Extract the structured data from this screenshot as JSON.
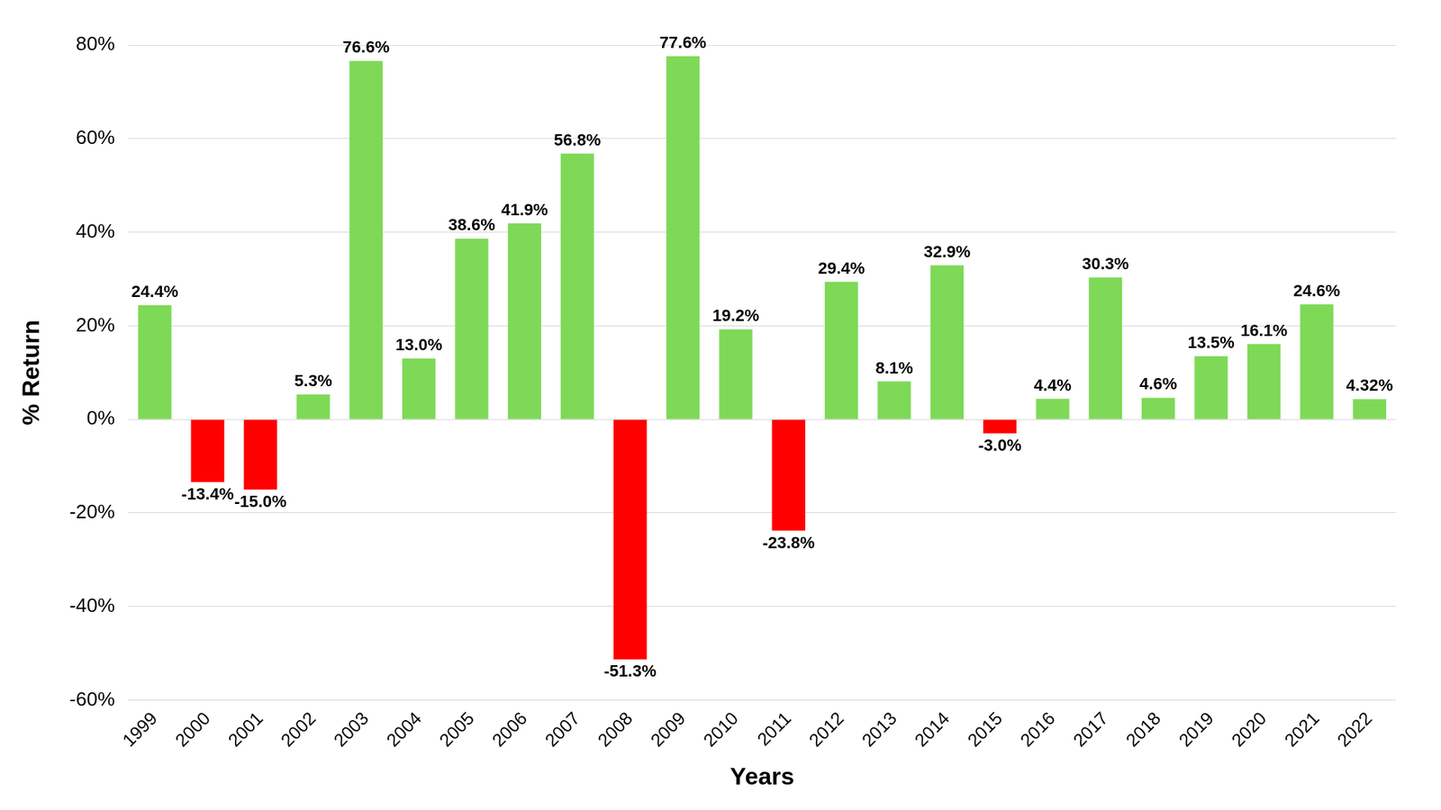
{
  "chart_data": {
    "type": "bar",
    "x_label": "Years",
    "y_label": "% Return",
    "categories": [
      "1999",
      "2000",
      "2001",
      "2002",
      "2003",
      "2004",
      "2005",
      "2006",
      "2007",
      "2008",
      "2009",
      "2010",
      "2011",
      "2012",
      "2013",
      "2014",
      "2015",
      "2016",
      "2017",
      "2018",
      "2019",
      "2020",
      "2021",
      "2022"
    ],
    "values": [
      24.4,
      -13.4,
      -15.0,
      5.3,
      76.6,
      13.0,
      38.6,
      41.9,
      56.8,
      -51.3,
      77.6,
      19.2,
      -23.8,
      29.4,
      8.1,
      32.9,
      -3.0,
      4.4,
      30.3,
      4.6,
      13.5,
      16.1,
      24.6,
      4.32
    ],
    "value_labels": [
      "24.4%",
      "-13.4%",
      "-15.0%",
      "5.3%",
      "76.6%",
      "13.0%",
      "38.6%",
      "41.9%",
      "56.8%",
      "-51.3%",
      "77.6%",
      "19.2%",
      "-23.8%",
      "29.4%",
      "8.1%",
      "32.9%",
      "-3.0%",
      "4.4%",
      "30.3%",
      "4.6%",
      "13.5%",
      "16.1%",
      "24.6%",
      "4.32%"
    ],
    "colors": [
      "#7ed957",
      "#ff0000",
      "#ff0000",
      "#7ed957",
      "#7ed957",
      "#7ed957",
      "#7ed957",
      "#7ed957",
      "#7ed957",
      "#ff0000",
      "#7ed957",
      "#7ed957",
      "#ff0000",
      "#7ed957",
      "#7ed957",
      "#7ed957",
      "#ff0000",
      "#7ed957",
      "#7ed957",
      "#7ed957",
      "#7ed957",
      "#7ed957",
      "#7ed957",
      "#7ed957"
    ],
    "ylim": [
      -60,
      80
    ],
    "yticks": [
      {
        "value": -60,
        "label": "-60%"
      },
      {
        "value": -40,
        "label": "-40%"
      },
      {
        "value": -20,
        "label": "-20%"
      },
      {
        "value": 0,
        "label": "0%"
      },
      {
        "value": 20,
        "label": "20%"
      },
      {
        "value": 40,
        "label": "40%"
      },
      {
        "value": 60,
        "label": "60%"
      },
      {
        "value": 80,
        "label": "80%"
      }
    ],
    "grid": true,
    "data_labels": true
  }
}
